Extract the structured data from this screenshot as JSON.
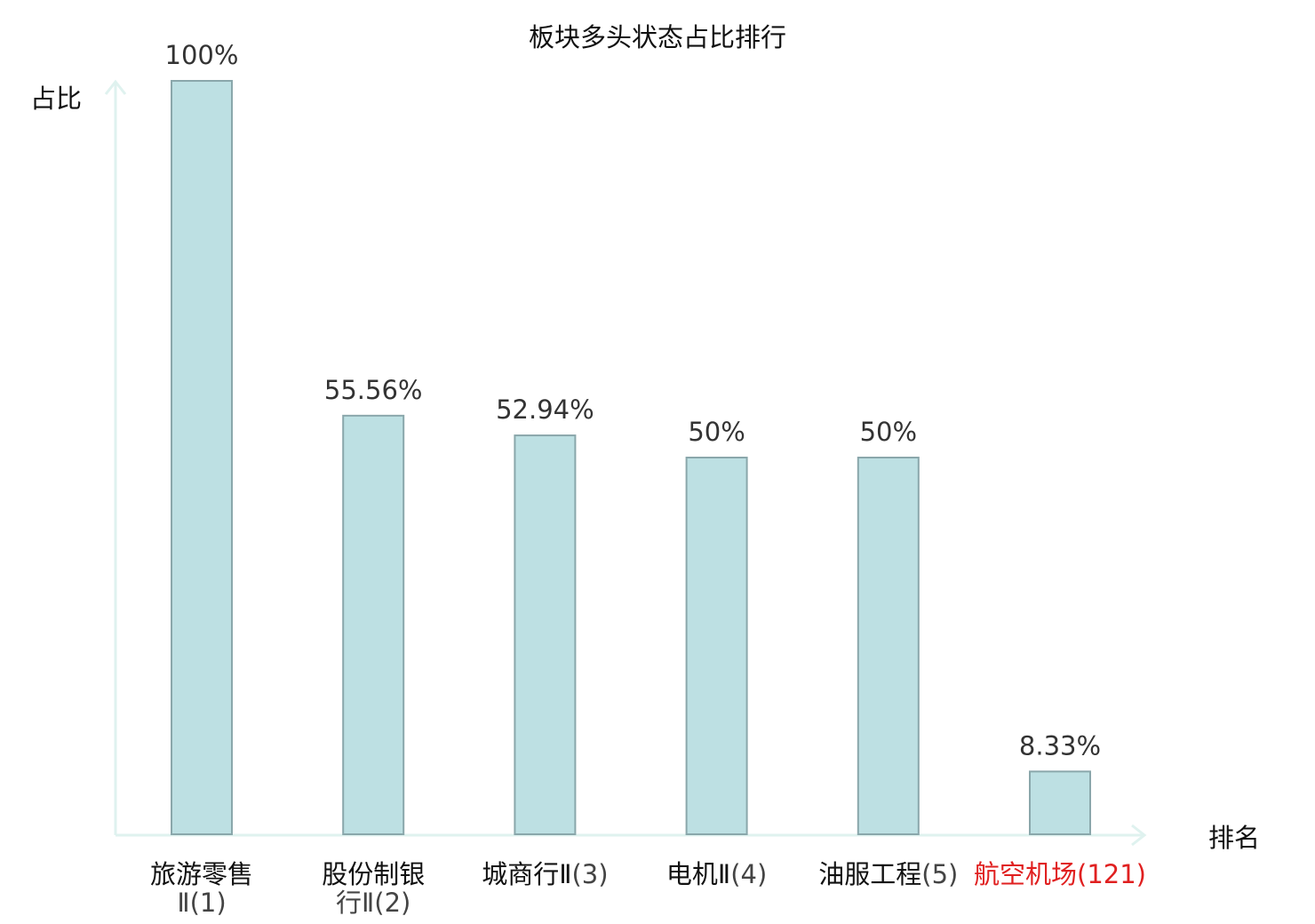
{
  "chart_data": {
    "type": "bar",
    "title": "板块多头状态占比排行",
    "ylabel": "占比",
    "xlabel": "排名",
    "ylim": [
      0,
      100
    ],
    "grid": false,
    "categories": [
      {
        "name": "旅游零售Ⅱ",
        "rank": "(1)",
        "value": 100,
        "label": "100%",
        "highlight": false
      },
      {
        "name": "股份制银行Ⅱ",
        "rank": "(2)",
        "value": 55.56,
        "label": "55.56%",
        "highlight": false
      },
      {
        "name": "城商行Ⅱ",
        "rank": "(3)",
        "value": 52.94,
        "label": "52.94%",
        "highlight": false
      },
      {
        "name": "电机Ⅱ",
        "rank": "(4)",
        "value": 50,
        "label": "50%",
        "highlight": false
      },
      {
        "name": "油服工程",
        "rank": "(5)",
        "value": 50,
        "label": "50%",
        "highlight": false
      },
      {
        "name": "航空机场",
        "rank": "(121)",
        "value": 8.33,
        "label": "8.33%",
        "highlight": true
      }
    ],
    "colors": {
      "bar_fill": "#bde0e3",
      "bar_stroke": "#8aa7ab",
      "axis": "#dff2ef",
      "highlight": "#e02020"
    }
  }
}
